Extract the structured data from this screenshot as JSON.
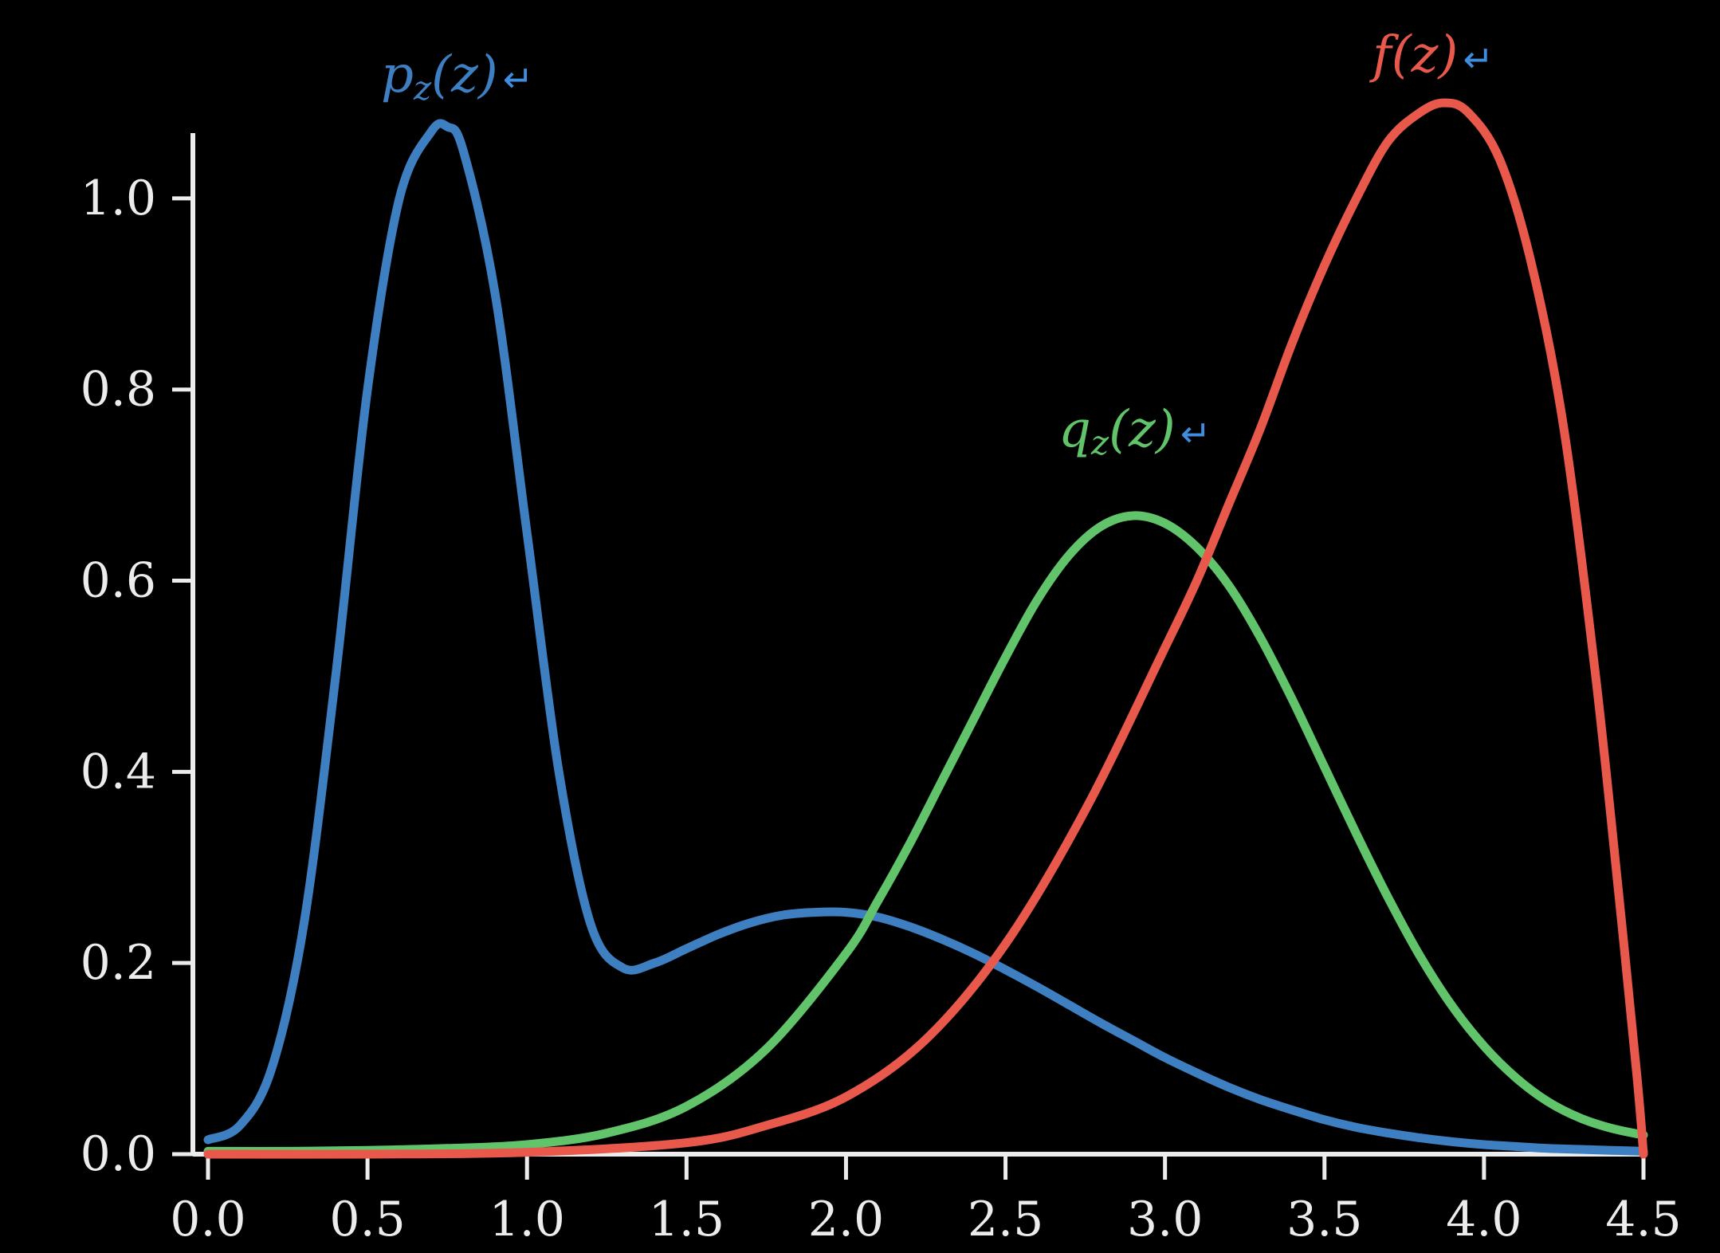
{
  "chart_data": {
    "type": "line",
    "title": "",
    "xlabel": "",
    "ylabel": "",
    "xlim": [
      0.0,
      4.5
    ],
    "ylim": [
      0.0,
      1.1
    ],
    "x_ticks": [
      "0.0",
      "0.5",
      "1.0",
      "1.5",
      "2.0",
      "2.5",
      "3.0",
      "3.5",
      "4.0",
      "4.5"
    ],
    "y_ticks": [
      "0.0",
      "0.2",
      "0.4",
      "0.6",
      "0.8",
      "1.0"
    ],
    "grid": false,
    "series": [
      {
        "name": "p_z(z)",
        "label_main": "p",
        "label_sub": "z",
        "label_args": "(z)",
        "label_return": "↵",
        "color": "#3d7fc1",
        "x": [
          0.0,
          0.1,
          0.2,
          0.3,
          0.4,
          0.5,
          0.6,
          0.7,
          0.75,
          0.8,
          0.9,
          1.0,
          1.1,
          1.2,
          1.3,
          1.4,
          1.5,
          1.6,
          1.7,
          1.8,
          1.9,
          2.0,
          2.1,
          2.2,
          2.3,
          2.4,
          2.5,
          2.6,
          2.7,
          2.8,
          2.9,
          3.0,
          3.1,
          3.2,
          3.3,
          3.4,
          3.5,
          3.6,
          3.7,
          3.8,
          3.9,
          4.0,
          4.1,
          4.2,
          4.3,
          4.4,
          4.5
        ],
        "y": [
          0.015,
          0.03,
          0.09,
          0.24,
          0.5,
          0.8,
          1.0,
          1.07,
          1.075,
          1.05,
          0.9,
          0.65,
          0.4,
          0.24,
          0.195,
          0.2,
          0.215,
          0.23,
          0.242,
          0.25,
          0.253,
          0.253,
          0.248,
          0.238,
          0.225,
          0.21,
          0.193,
          0.175,
          0.156,
          0.137,
          0.119,
          0.101,
          0.085,
          0.07,
          0.057,
          0.046,
          0.036,
          0.028,
          0.022,
          0.017,
          0.013,
          0.01,
          0.008,
          0.006,
          0.005,
          0.004,
          0.003
        ]
      },
      {
        "name": "q_z(z)",
        "label_main": "q",
        "label_sub": "z",
        "label_args": "(z)",
        "label_return": "↵",
        "color": "#62c46a",
        "x": [
          0.0,
          0.25,
          0.5,
          0.75,
          1.0,
          1.25,
          1.5,
          1.75,
          2.0,
          2.1,
          2.2,
          2.3,
          2.4,
          2.5,
          2.6,
          2.7,
          2.8,
          2.9,
          3.0,
          3.1,
          3.2,
          3.3,
          3.4,
          3.5,
          3.6,
          3.7,
          3.8,
          3.9,
          4.0,
          4.1,
          4.2,
          4.3,
          4.4,
          4.5
        ],
        "y": [
          0.003,
          0.003,
          0.004,
          0.006,
          0.01,
          0.022,
          0.05,
          0.11,
          0.21,
          0.265,
          0.325,
          0.39,
          0.455,
          0.52,
          0.58,
          0.627,
          0.657,
          0.668,
          0.66,
          0.635,
          0.595,
          0.54,
          0.475,
          0.405,
          0.335,
          0.268,
          0.207,
          0.155,
          0.113,
          0.08,
          0.055,
          0.038,
          0.027,
          0.02
        ]
      },
      {
        "name": "f(z)",
        "label_main": "f",
        "label_sub": "",
        "label_args": "(z)",
        "label_return": "↵",
        "color": "#e8584b",
        "x": [
          0.0,
          0.5,
          1.0,
          1.5,
          1.75,
          2.0,
          2.25,
          2.5,
          2.75,
          3.0,
          3.1,
          3.2,
          3.3,
          3.4,
          3.5,
          3.6,
          3.7,
          3.8,
          3.875,
          3.95,
          4.05,
          4.15,
          4.25,
          4.35,
          4.42,
          4.48,
          4.5
        ],
        "y": [
          0.0,
          0.0,
          0.002,
          0.012,
          0.03,
          0.06,
          0.12,
          0.22,
          0.36,
          0.53,
          0.6,
          0.68,
          0.76,
          0.85,
          0.93,
          1.0,
          1.06,
          1.09,
          1.1,
          1.09,
          1.04,
          0.93,
          0.76,
          0.5,
          0.28,
          0.08,
          0.0
        ]
      }
    ]
  }
}
